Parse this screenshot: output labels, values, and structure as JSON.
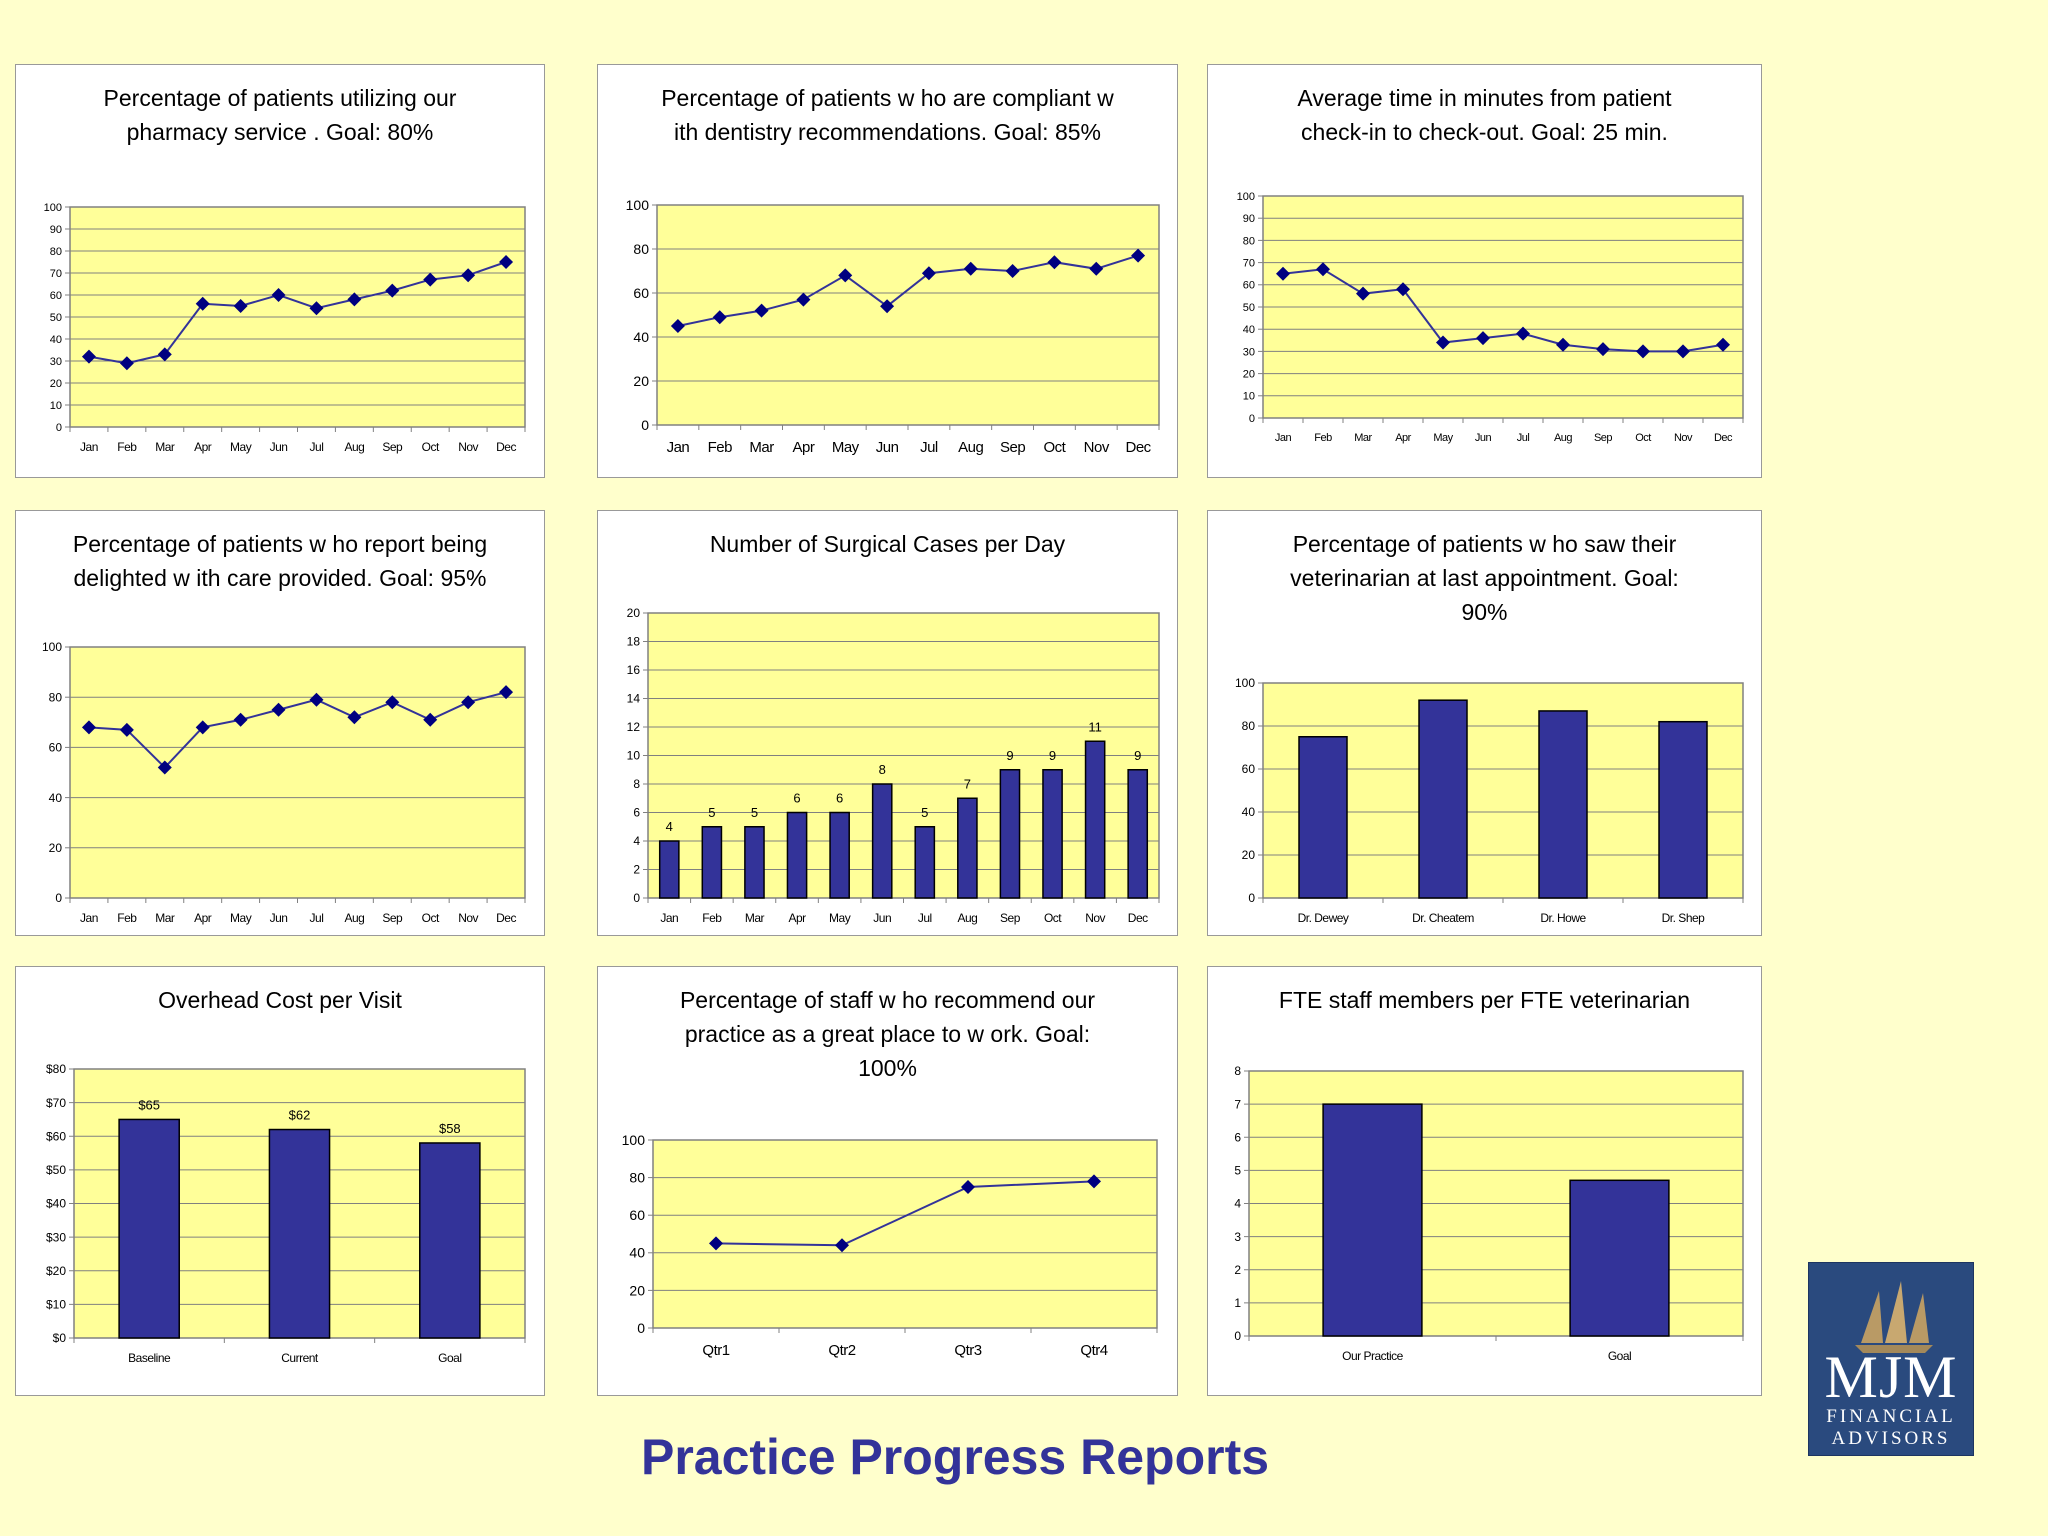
{
  "page_title": "Practice Progress Reports",
  "logo": {
    "name": "MJM",
    "line1": "FINANCIAL",
    "line2": "ADVISORS"
  },
  "colors": {
    "background": "#ffffcc",
    "plot_fill": "#ffff99",
    "series": "#333399",
    "grid": "#808080",
    "title": "#333399"
  },
  "chart_data": [
    {
      "id": "pharmacy",
      "type": "line",
      "title": "Percentage of patients utilizing our pharmacy service . Goal: 80%",
      "categories": [
        "Jan",
        "Feb",
        "Mar",
        "Apr",
        "May",
        "Jun",
        "Jul",
        "Aug",
        "Sep",
        "Oct",
        "Nov",
        "Dec"
      ],
      "values": [
        32,
        29,
        33,
        56,
        55,
        60,
        54,
        58,
        62,
        67,
        69,
        75
      ],
      "ylim": [
        0,
        100
      ],
      "yticks": [
        "0",
        "10",
        "20",
        "30",
        "40",
        "50",
        "60",
        "70",
        "80",
        "90",
        "100"
      ],
      "grid": true,
      "legend": "none"
    },
    {
      "id": "dentistry",
      "type": "line",
      "title": "Percentage of patients w ho are compliant w ith dentistry recommendations. Goal: 85%",
      "categories": [
        "Jan",
        "Feb",
        "Mar",
        "Apr",
        "May",
        "Jun",
        "Jul",
        "Aug",
        "Sep",
        "Oct",
        "Nov",
        "Dec"
      ],
      "values": [
        45,
        49,
        52,
        57,
        68,
        54,
        69,
        71,
        70,
        74,
        71,
        77
      ],
      "ylim": [
        0,
        100
      ],
      "yticks": [
        "0",
        "20",
        "40",
        "60",
        "80",
        "100"
      ],
      "grid": true,
      "legend": "none"
    },
    {
      "id": "checkin",
      "type": "line",
      "title": "Average time in minutes from patient check-in to check-out. Goal: 25 min.",
      "categories": [
        "Jan",
        "Feb",
        "Mar",
        "Apr",
        "May",
        "Jun",
        "Jul",
        "Aug",
        "Sep",
        "Oct",
        "Nov",
        "Dec"
      ],
      "values": [
        65,
        67,
        56,
        58,
        34,
        36,
        38,
        33,
        31,
        30,
        30,
        33
      ],
      "ylim": [
        0,
        100
      ],
      "yticks": [
        "0",
        "10",
        "20",
        "30",
        "40",
        "50",
        "60",
        "70",
        "80",
        "90",
        "100"
      ],
      "grid": true,
      "legend": "none"
    },
    {
      "id": "delighted",
      "type": "line",
      "title": "Percentage of patients w ho report being delighted w ith care provided. Goal: 95%",
      "categories": [
        "Jan",
        "Feb",
        "Mar",
        "Apr",
        "May",
        "Jun",
        "Jul",
        "Aug",
        "Sep",
        "Oct",
        "Nov",
        "Dec"
      ],
      "values": [
        68,
        67,
        52,
        68,
        71,
        75,
        79,
        72,
        78,
        71,
        78,
        82
      ],
      "ylim": [
        0,
        100
      ],
      "yticks": [
        "0",
        "20",
        "40",
        "60",
        "80",
        "100"
      ],
      "grid": true,
      "legend": "none"
    },
    {
      "id": "surgical",
      "type": "bar",
      "title": "Number of Surgical Cases per Day",
      "categories": [
        "Jan",
        "Feb",
        "Mar",
        "Apr",
        "May",
        "Jun",
        "Jul",
        "Aug",
        "Sep",
        "Oct",
        "Nov",
        "Dec"
      ],
      "values": [
        4,
        5,
        5,
        6,
        6,
        8,
        5,
        7,
        9,
        9,
        11,
        9
      ],
      "data_labels": [
        "4",
        "5",
        "5",
        "6",
        "6",
        "8",
        "5",
        "7",
        "9",
        "9",
        "11",
        "9"
      ],
      "ylim": [
        0,
        20
      ],
      "yticks": [
        "0",
        "2",
        "4",
        "6",
        "8",
        "10",
        "12",
        "14",
        "16",
        "18",
        "20"
      ],
      "grid": true,
      "legend": "none"
    },
    {
      "id": "veterinarian",
      "type": "bar",
      "title": "Percentage of patients w ho saw their veterinarian at last appointment. Goal: 90%",
      "categories": [
        "Dr. Dewey",
        "Dr. Cheatem",
        "Dr. Howe",
        "Dr. Shep"
      ],
      "values": [
        75,
        92,
        87,
        82
      ],
      "ylim": [
        0,
        100
      ],
      "yticks": [
        "0",
        "20",
        "40",
        "60",
        "80",
        "100"
      ],
      "grid": true,
      "legend": "none"
    },
    {
      "id": "overhead",
      "type": "bar",
      "title": "Overhead Cost per Visit",
      "categories": [
        "Baseline",
        "Current",
        "Goal"
      ],
      "values": [
        65,
        62,
        58
      ],
      "data_labels": [
        "$65",
        "$62",
        "$58"
      ],
      "ylim": [
        0,
        80
      ],
      "yticks": [
        "$0",
        "$10",
        "$20",
        "$30",
        "$40",
        "$50",
        "$60",
        "$70",
        "$80"
      ],
      "grid": true,
      "legend": "none"
    },
    {
      "id": "staff",
      "type": "line",
      "title": "Percentage of staff w ho recommend our practice as a great place to w ork. Goal: 100%",
      "categories": [
        "Qtr1",
        "Qtr2",
        "Qtr3",
        "Qtr4"
      ],
      "values": [
        45,
        44,
        75,
        78
      ],
      "ylim": [
        0,
        100
      ],
      "yticks": [
        "0",
        "20",
        "40",
        "60",
        "80",
        "100"
      ],
      "grid": true,
      "legend": "none"
    },
    {
      "id": "fte",
      "type": "bar",
      "title": "FTE staff members per FTE veterinarian",
      "categories": [
        "Our Practice",
        "Goal"
      ],
      "values": [
        7,
        4.7
      ],
      "ylim": [
        0,
        8
      ],
      "yticks": [
        "0",
        "1",
        "2",
        "3",
        "4",
        "5",
        "6",
        "7",
        "8"
      ],
      "grid": true,
      "legend": "none"
    }
  ]
}
